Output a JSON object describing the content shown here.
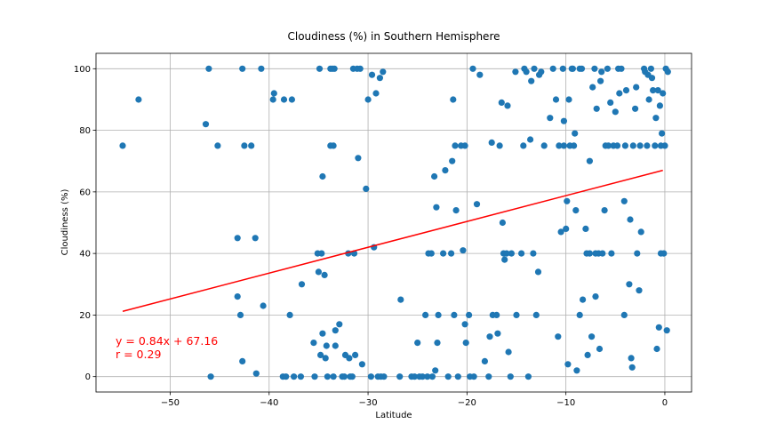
{
  "chart_data": {
    "type": "scatter",
    "title": "Cloudiness (%) in Southern Hemisphere",
    "xlabel": "Latitude",
    "ylabel": "Cloudiness (%)",
    "xlim": [
      -57.5,
      2.7
    ],
    "ylim": [
      -5,
      105
    ],
    "xticks": [
      -50,
      -40,
      -30,
      -20,
      -10,
      0
    ],
    "xtick_labels": [
      "−50",
      "−40",
      "−30",
      "−20",
      "−10",
      "0"
    ],
    "yticks": [
      0,
      20,
      40,
      60,
      80,
      100
    ],
    "ytick_labels": [
      "0",
      "20",
      "40",
      "60",
      "80",
      "100"
    ],
    "grid": true,
    "marker_color": "#1f77b4",
    "regression": {
      "x": [
        -54.8,
        -0.2
      ],
      "y": [
        21.2,
        67.0
      ],
      "color": "#ff0000",
      "equation": "y = 0.84x + 67.16",
      "r_label": "r = 0.29"
    },
    "points": [
      [
        -54.8,
        75
      ],
      [
        -53.2,
        90
      ],
      [
        -46.4,
        82
      ],
      [
        -46.1,
        100
      ],
      [
        -45.2,
        75
      ],
      [
        -45.9,
        0
      ],
      [
        -43.2,
        45
      ],
      [
        -43.2,
        26
      ],
      [
        -42.9,
        20
      ],
      [
        -42.7,
        5
      ],
      [
        -42.7,
        100
      ],
      [
        -42.5,
        75
      ],
      [
        -41.8,
        75
      ],
      [
        -41.4,
        45
      ],
      [
        -41.3,
        1
      ],
      [
        -40.8,
        100
      ],
      [
        -40.6,
        23
      ],
      [
        -39.6,
        90
      ],
      [
        -39.5,
        92
      ],
      [
        -38.5,
        90
      ],
      [
        -38.6,
        0
      ],
      [
        -38.3,
        0
      ],
      [
        -37.9,
        20
      ],
      [
        -37.7,
        90
      ],
      [
        -37.5,
        0
      ],
      [
        -36.7,
        30
      ],
      [
        -36.8,
        0
      ],
      [
        -35.5,
        11
      ],
      [
        -35.4,
        0
      ],
      [
        -35.1,
        40
      ],
      [
        -34.9,
        100
      ],
      [
        -35.0,
        34
      ],
      [
        -34.7,
        40
      ],
      [
        -34.6,
        65
      ],
      [
        -34.8,
        7
      ],
      [
        -34.6,
        14
      ],
      [
        -34.4,
        33
      ],
      [
        -34.3,
        6
      ],
      [
        -34.2,
        10
      ],
      [
        -34.1,
        0
      ],
      [
        -33.8,
        100
      ],
      [
        -33.6,
        100
      ],
      [
        -33.4,
        100
      ],
      [
        -33.8,
        75
      ],
      [
        -33.5,
        75
      ],
      [
        -33.3,
        10
      ],
      [
        -33.5,
        0
      ],
      [
        -33.3,
        15
      ],
      [
        -32.9,
        17
      ],
      [
        -32.6,
        0
      ],
      [
        -32.4,
        0
      ],
      [
        -32.3,
        7
      ],
      [
        -32.0,
        40
      ],
      [
        -31.9,
        6
      ],
      [
        -31.8,
        0
      ],
      [
        -31.6,
        0
      ],
      [
        -31.5,
        100
      ],
      [
        -31.3,
        7
      ],
      [
        -31.4,
        40
      ],
      [
        -31.1,
        100
      ],
      [
        -31.0,
        71
      ],
      [
        -30.8,
        100
      ],
      [
        -30.6,
        4
      ],
      [
        -30.2,
        61
      ],
      [
        -30.0,
        90
      ],
      [
        -29.7,
        0
      ],
      [
        -29.6,
        98
      ],
      [
        -29.4,
        42
      ],
      [
        -29.2,
        92
      ],
      [
        -29.0,
        0
      ],
      [
        -28.8,
        97
      ],
      [
        -28.7,
        0
      ],
      [
        -28.5,
        99
      ],
      [
        -28.4,
        0
      ],
      [
        -26.8,
        0
      ],
      [
        -26.7,
        25
      ],
      [
        -25.6,
        0
      ],
      [
        -25.3,
        0
      ],
      [
        -25.0,
        11
      ],
      [
        -24.8,
        0
      ],
      [
        -24.5,
        0
      ],
      [
        -24.2,
        20
      ],
      [
        -24.0,
        0
      ],
      [
        -23.9,
        40
      ],
      [
        -23.6,
        40
      ],
      [
        -23.5,
        0
      ],
      [
        -23.3,
        65
      ],
      [
        -23.2,
        2
      ],
      [
        -23.1,
        55
      ],
      [
        -23.0,
        11
      ],
      [
        -22.9,
        20
      ],
      [
        -22.4,
        40
      ],
      [
        -22.2,
        67
      ],
      [
        -21.9,
        0
      ],
      [
        -21.6,
        40
      ],
      [
        -21.5,
        70
      ],
      [
        -21.4,
        90
      ],
      [
        -21.3,
        20
      ],
      [
        -21.2,
        75
      ],
      [
        -21.1,
        54
      ],
      [
        -20.9,
        0
      ],
      [
        -20.6,
        75
      ],
      [
        -20.4,
        41
      ],
      [
        -20.2,
        75
      ],
      [
        -20.2,
        17
      ],
      [
        -20.1,
        11
      ],
      [
        -19.8,
        20
      ],
      [
        -19.7,
        0
      ],
      [
        -19.3,
        0
      ],
      [
        -19.4,
        100
      ],
      [
        -19.0,
        56
      ],
      [
        -18.7,
        98
      ],
      [
        -18.2,
        5
      ],
      [
        -17.8,
        0
      ],
      [
        -17.7,
        13
      ],
      [
        -17.5,
        76
      ],
      [
        -17.4,
        20
      ],
      [
        -17.0,
        20
      ],
      [
        -16.9,
        14
      ],
      [
        -16.7,
        75
      ],
      [
        -16.5,
        89
      ],
      [
        -16.4,
        50
      ],
      [
        -16.3,
        40
      ],
      [
        -16.2,
        38
      ],
      [
        -16.0,
        40
      ],
      [
        -15.9,
        88
      ],
      [
        -15.8,
        8
      ],
      [
        -15.6,
        0
      ],
      [
        -15.5,
        40
      ],
      [
        -15.1,
        99
      ],
      [
        -15.0,
        20
      ],
      [
        -14.5,
        40
      ],
      [
        -14.3,
        75
      ],
      [
        -14.2,
        100
      ],
      [
        -14.0,
        99
      ],
      [
        -13.8,
        0
      ],
      [
        -13.6,
        77
      ],
      [
        -13.5,
        96
      ],
      [
        -13.3,
        40
      ],
      [
        -13.2,
        100
      ],
      [
        -13.0,
        20
      ],
      [
        -12.8,
        34
      ],
      [
        -12.7,
        98
      ],
      [
        -12.5,
        99
      ],
      [
        -12.2,
        75
      ],
      [
        -11.6,
        84
      ],
      [
        -11.3,
        100
      ],
      [
        -11.0,
        90
      ],
      [
        -10.8,
        13
      ],
      [
        -10.7,
        75
      ],
      [
        -10.5,
        47
      ],
      [
        -10.3,
        100
      ],
      [
        -10.2,
        75
      ],
      [
        -10.2,
        83
      ],
      [
        -10.0,
        48
      ],
      [
        -9.9,
        57
      ],
      [
        -9.8,
        4
      ],
      [
        -9.7,
        90
      ],
      [
        -9.6,
        75
      ],
      [
        -9.4,
        100
      ],
      [
        -9.3,
        100
      ],
      [
        -9.2,
        75
      ],
      [
        -9.1,
        79
      ],
      [
        -9.0,
        54
      ],
      [
        -8.9,
        2
      ],
      [
        -8.6,
        100
      ],
      [
        -8.6,
        20
      ],
      [
        -8.4,
        100
      ],
      [
        -8.3,
        25
      ],
      [
        -8.0,
        48
      ],
      [
        -7.9,
        40
      ],
      [
        -7.8,
        7
      ],
      [
        -7.6,
        40
      ],
      [
        -7.6,
        70
      ],
      [
        -7.4,
        13
      ],
      [
        -7.3,
        94
      ],
      [
        -7.1,
        100
      ],
      [
        -7.0,
        40
      ],
      [
        -7.0,
        26
      ],
      [
        -6.9,
        87
      ],
      [
        -6.7,
        40
      ],
      [
        -6.6,
        9
      ],
      [
        -6.5,
        96
      ],
      [
        -6.4,
        99
      ],
      [
        -6.3,
        40
      ],
      [
        -6.1,
        54
      ],
      [
        -6.0,
        75
      ],
      [
        -5.8,
        100
      ],
      [
        -5.7,
        75
      ],
      [
        -5.5,
        89
      ],
      [
        -5.4,
        40
      ],
      [
        -5.2,
        75
      ],
      [
        -5.0,
        86
      ],
      [
        -4.8,
        75
      ],
      [
        -4.7,
        100
      ],
      [
        -4.6,
        92
      ],
      [
        -4.4,
        100
      ],
      [
        -4.1,
        57
      ],
      [
        -4.1,
        20
      ],
      [
        -4.0,
        75
      ],
      [
        -3.9,
        93
      ],
      [
        -3.6,
        30
      ],
      [
        -3.5,
        51
      ],
      [
        -3.4,
        6
      ],
      [
        -3.3,
        3
      ],
      [
        -3.2,
        75
      ],
      [
        -3.0,
        87
      ],
      [
        -2.9,
        94
      ],
      [
        -2.8,
        40
      ],
      [
        -2.6,
        28
      ],
      [
        -2.5,
        75
      ],
      [
        -2.4,
        47
      ],
      [
        -2.1,
        100
      ],
      [
        -2.0,
        99
      ],
      [
        -1.8,
        75
      ],
      [
        -1.7,
        98
      ],
      [
        -1.6,
        90
      ],
      [
        -1.4,
        100
      ],
      [
        -1.3,
        97
      ],
      [
        -1.2,
        93
      ],
      [
        -1.0,
        75
      ],
      [
        -0.9,
        84
      ],
      [
        -0.8,
        9
      ],
      [
        -0.7,
        93
      ],
      [
        -0.6,
        16
      ],
      [
        -0.5,
        88
      ],
      [
        -0.4,
        75
      ],
      [
        -0.3,
        79
      ],
      [
        -0.2,
        92
      ],
      [
        -0.1,
        40
      ],
      [
        0.0,
        75
      ],
      [
        0.1,
        100
      ],
      [
        0.2,
        15
      ],
      [
        0.3,
        99
      ],
      [
        -0.4,
        40
      ]
    ]
  }
}
